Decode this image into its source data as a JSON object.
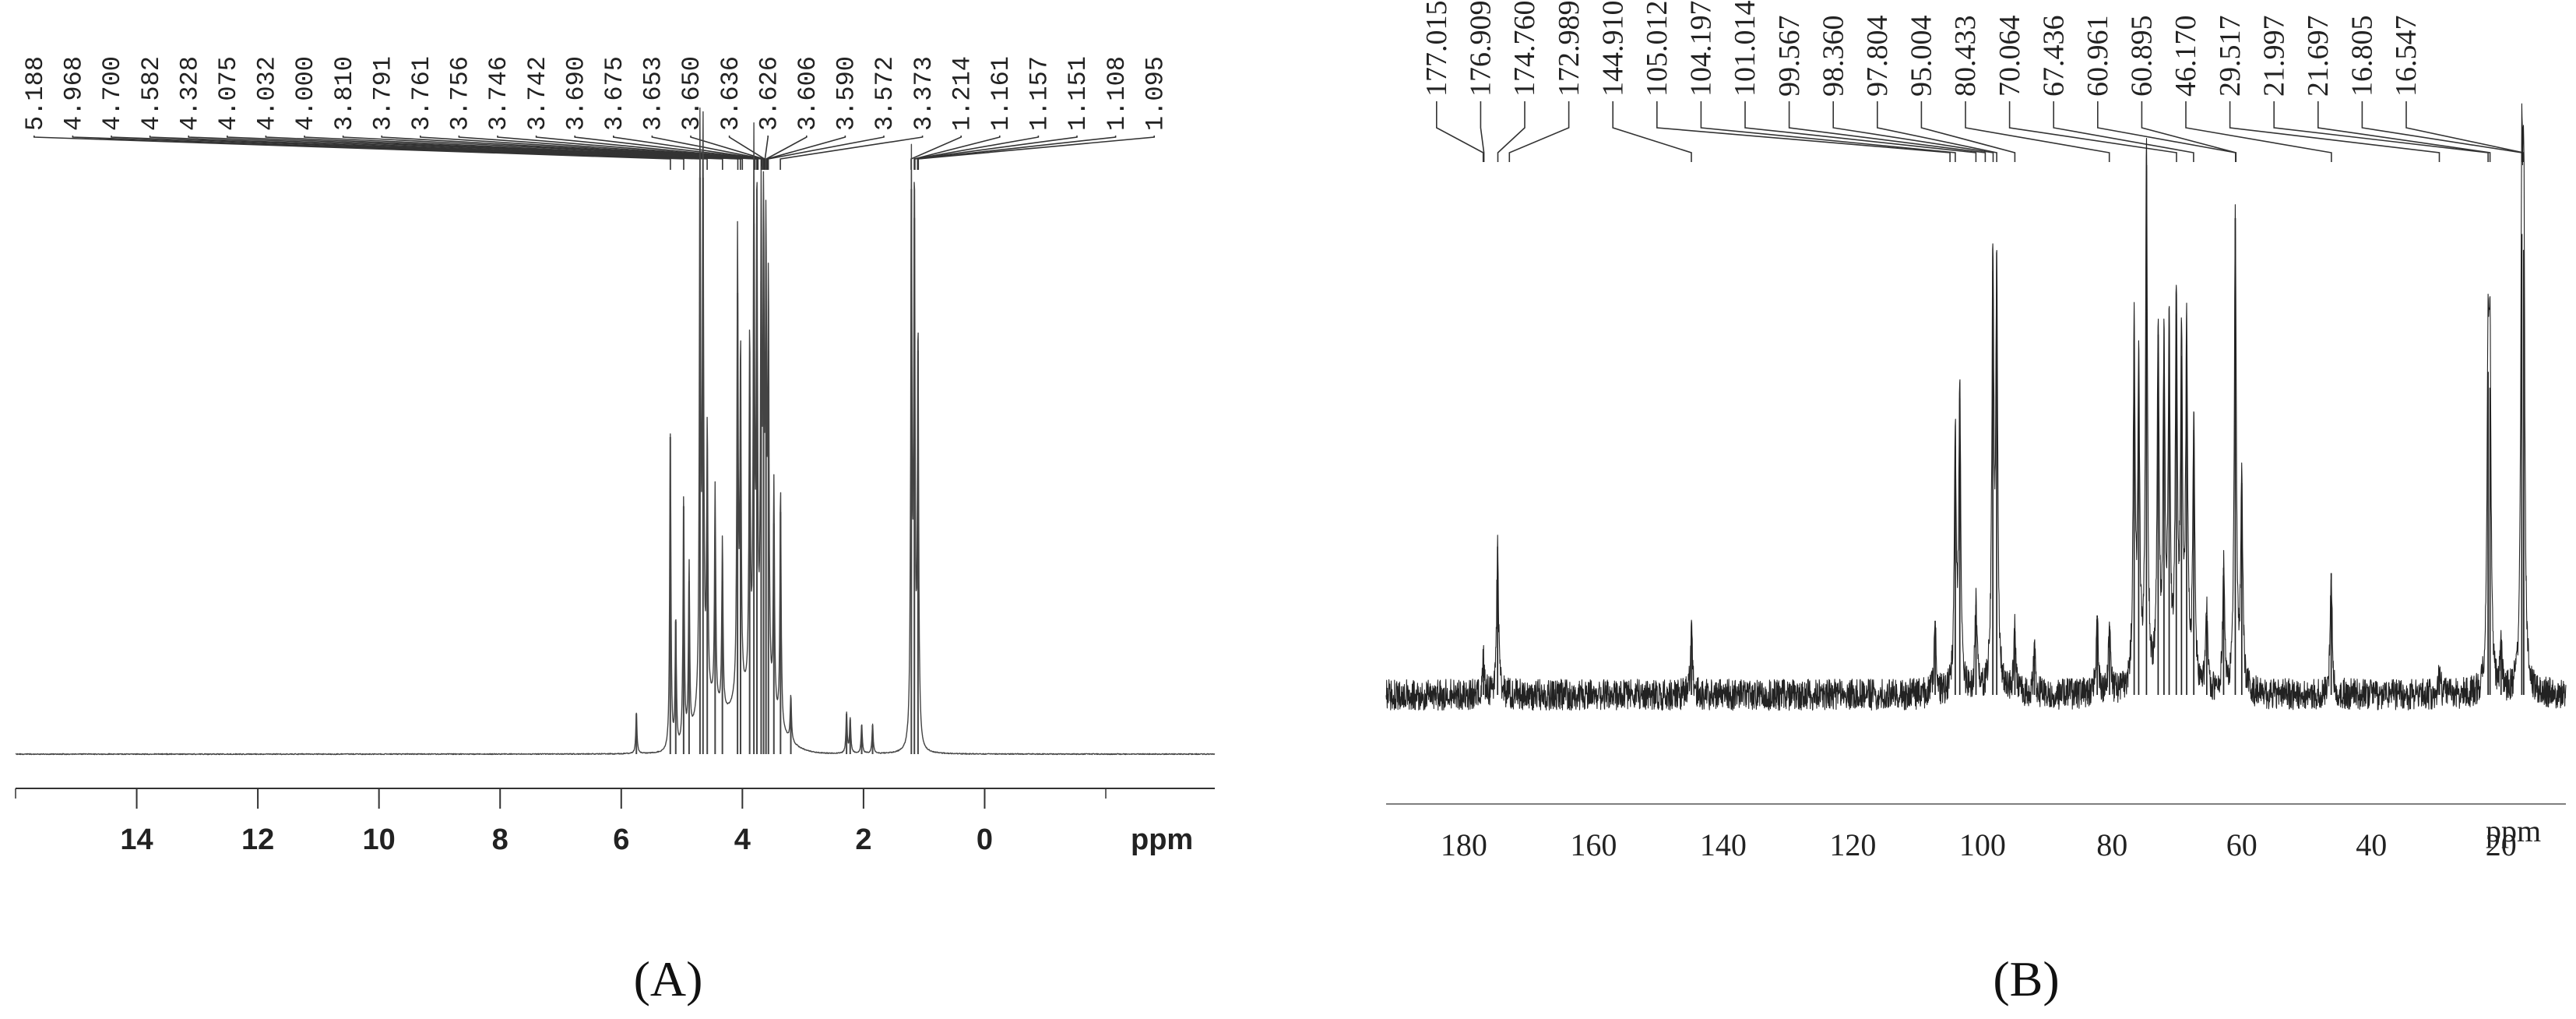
{
  "chart_data": [
    {
      "type": "line",
      "panel_label": "(A)",
      "xlabel": "ppm",
      "x_reversed": true,
      "xlim": [
        16,
        -3.8
      ],
      "x_ticks": [
        14,
        12,
        10,
        8,
        6,
        4,
        2,
        0
      ],
      "peak_labels": [
        "5.188",
        "4.968",
        "4.700",
        "4.582",
        "4.328",
        "4.075",
        "4.032",
        "4.000",
        "3.810",
        "3.791",
        "3.761",
        "3.756",
        "3.746",
        "3.742",
        "3.690",
        "3.675",
        "3.653",
        "3.650",
        "3.636",
        "3.626",
        "3.606",
        "3.590",
        "3.572",
        "3.373",
        "1.214",
        "1.161",
        "1.157",
        "1.151",
        "1.108",
        "1.095"
      ],
      "peaks": [
        {
          "x": 5.75,
          "h": 0.07
        },
        {
          "x": 5.19,
          "h": 0.55
        },
        {
          "x": 5.1,
          "h": 0.23
        },
        {
          "x": 4.97,
          "h": 0.43
        },
        {
          "x": 4.88,
          "h": 0.3
        },
        {
          "x": 4.7,
          "h": 1.0
        },
        {
          "x": 4.65,
          "h": 1.0
        },
        {
          "x": 4.58,
          "h": 0.47
        },
        {
          "x": 4.45,
          "h": 0.38
        },
        {
          "x": 4.33,
          "h": 0.3
        },
        {
          "x": 4.08,
          "h": 0.8
        },
        {
          "x": 4.03,
          "h": 0.6
        },
        {
          "x": 3.88,
          "h": 0.62
        },
        {
          "x": 3.81,
          "h": 0.92
        },
        {
          "x": 3.76,
          "h": 0.86
        },
        {
          "x": 3.69,
          "h": 0.82
        },
        {
          "x": 3.65,
          "h": 0.78
        },
        {
          "x": 3.61,
          "h": 0.75
        },
        {
          "x": 3.57,
          "h": 0.7
        },
        {
          "x": 3.48,
          "h": 0.4
        },
        {
          "x": 3.37,
          "h": 0.42
        },
        {
          "x": 3.2,
          "h": 0.08
        },
        {
          "x": 2.28,
          "h": 0.07
        },
        {
          "x": 2.22,
          "h": 0.06
        },
        {
          "x": 2.03,
          "h": 0.05
        },
        {
          "x": 1.85,
          "h": 0.05
        },
        {
          "x": 1.21,
          "h": 0.98
        },
        {
          "x": 1.16,
          "h": 0.93
        },
        {
          "x": 1.1,
          "h": 0.7
        }
      ]
    },
    {
      "type": "line",
      "panel_label": "(B)",
      "xlabel": "ppm",
      "x_reversed": true,
      "xlim": [
        192,
        10
      ],
      "x_ticks": [
        180,
        160,
        140,
        120,
        100,
        80,
        60,
        40,
        20
      ],
      "peak_labels": [
        "177.015",
        "176.909",
        "174.760",
        "172.989",
        "144.910",
        "105.012",
        "104.197",
        "101.014",
        "99.567",
        "98.360",
        "97.804",
        "95.004",
        "80.433",
        "70.064",
        "67.436",
        "60.961",
        "60.895",
        "46.170",
        "29.517",
        "21.997",
        "21.697",
        "16.805",
        "16.547"
      ],
      "peaks": [
        {
          "x": 177.0,
          "h": 0.07
        },
        {
          "x": 174.8,
          "h": 0.28
        },
        {
          "x": 144.9,
          "h": 0.12
        },
        {
          "x": 107.3,
          "h": 0.14
        },
        {
          "x": 104.2,
          "h": 0.47
        },
        {
          "x": 103.5,
          "h": 0.56
        },
        {
          "x": 101.0,
          "h": 0.17
        },
        {
          "x": 98.4,
          "h": 0.8
        },
        {
          "x": 97.8,
          "h": 0.76
        },
        {
          "x": 95.0,
          "h": 0.12
        },
        {
          "x": 92.0,
          "h": 0.09
        },
        {
          "x": 82.3,
          "h": 0.15
        },
        {
          "x": 80.4,
          "h": 0.13
        },
        {
          "x": 76.6,
          "h": 0.67
        },
        {
          "x": 75.9,
          "h": 0.58
        },
        {
          "x": 74.7,
          "h": 1.0
        },
        {
          "x": 72.9,
          "h": 0.68
        },
        {
          "x": 72.0,
          "h": 0.62
        },
        {
          "x": 71.2,
          "h": 0.66
        },
        {
          "x": 70.1,
          "h": 0.72
        },
        {
          "x": 69.3,
          "h": 0.64
        },
        {
          "x": 68.5,
          "h": 0.66
        },
        {
          "x": 67.4,
          "h": 0.5
        },
        {
          "x": 65.4,
          "h": 0.15
        },
        {
          "x": 62.8,
          "h": 0.24
        },
        {
          "x": 61.0,
          "h": 0.9
        },
        {
          "x": 60.0,
          "h": 0.4
        },
        {
          "x": 46.2,
          "h": 0.23
        },
        {
          "x": 29.5,
          "h": 0.05
        },
        {
          "x": 22.0,
          "h": 0.61
        },
        {
          "x": 21.7,
          "h": 0.58
        },
        {
          "x": 20.0,
          "h": 0.1
        },
        {
          "x": 16.8,
          "h": 0.87
        },
        {
          "x": 16.5,
          "h": 0.84
        }
      ]
    }
  ]
}
